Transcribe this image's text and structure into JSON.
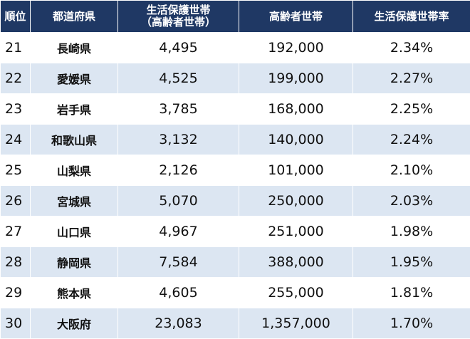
{
  "table": {
    "header": [
      "順位",
      "都道府県",
      "生活保護世帯\n（高齢者世帯）",
      "高齢者世帯",
      "生活保護世帯率"
    ],
    "rows": [
      [
        "21",
        "長崎県",
        "4,495",
        "192,000",
        "2.34%"
      ],
      [
        "22",
        "愛媛県",
        "4,525",
        "199,000",
        "2.27%"
      ],
      [
        "23",
        "岩手県",
        "3,785",
        "168,000",
        "2.25%"
      ],
      [
        "24",
        "和歌山県",
        "3,132",
        "140,000",
        "2.24%"
      ],
      [
        "25",
        "山梨県",
        "2,126",
        "101,000",
        "2.10%"
      ],
      [
        "26",
        "宮城県",
        "5,070",
        "250,000",
        "2.03%"
      ],
      [
        "27",
        "山口県",
        "4,967",
        "251,000",
        "1.98%"
      ],
      [
        "28",
        "静岡県",
        "7,584",
        "388,000",
        "1.95%"
      ],
      [
        "29",
        "熊本県",
        "4,605",
        "255,000",
        "1.81%"
      ],
      [
        "30",
        "大阪府",
        "23,083",
        "1,357,000",
        "1.70%"
      ]
    ]
  }
}
